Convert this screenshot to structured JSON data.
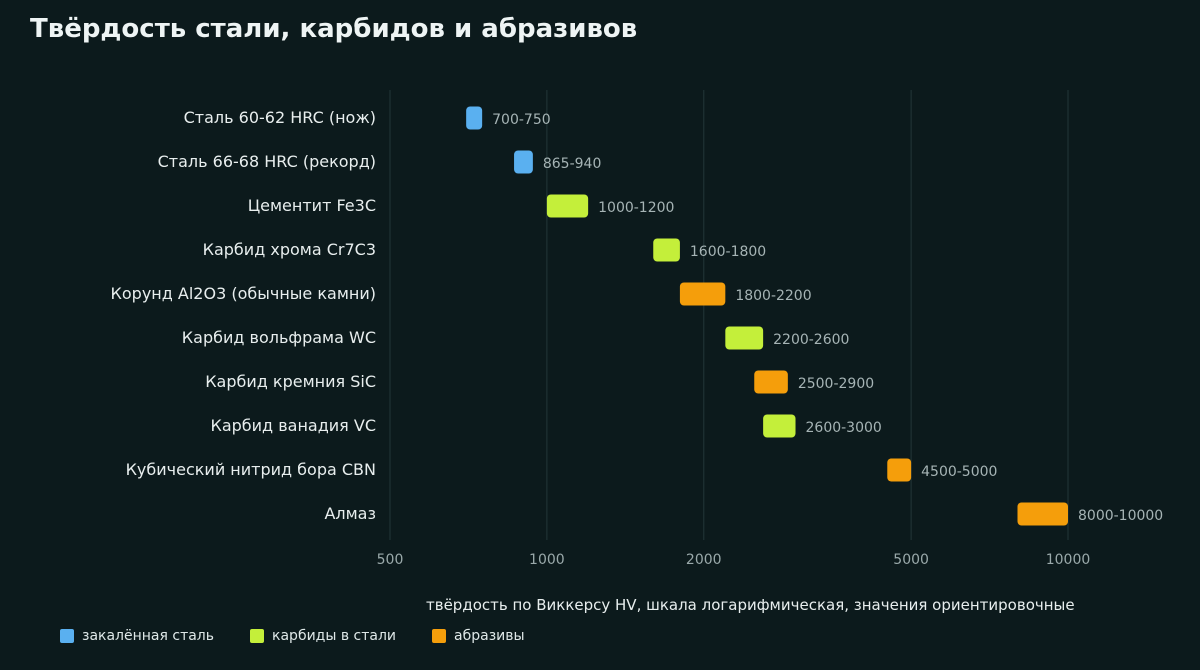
{
  "title": "Твёрдость стали, карбидов и абразивов",
  "chart_data": {
    "type": "bar",
    "subtype": "floating-range-horizontal",
    "title": "Твёрдость стали, карбидов и абразивов",
    "xlabel": "твёрдость по Виккерсу HV, шкала логарифмическая, значения ориентировочные",
    "ylabel": "",
    "x_scale": "log",
    "xlim": [
      500,
      10000
    ],
    "x_ticks": [
      500,
      1000,
      2000,
      5000,
      10000
    ],
    "grid": "vertical",
    "legend_position": "bottom-left",
    "groups": [
      {
        "key": "steel",
        "name": "закалённая сталь",
        "color": "#5ab0f0"
      },
      {
        "key": "carbide",
        "name": "карбиды в стали",
        "color": "#c4ef3a"
      },
      {
        "key": "abrasive",
        "name": "абразивы",
        "color": "#f59e0b"
      }
    ],
    "items": [
      {
        "label": "Сталь 60-62 HRC (нож)",
        "min": 700,
        "max": 750,
        "value_label": "700-750",
        "group": "steel"
      },
      {
        "label": "Сталь 66-68 HRC (рекорд)",
        "min": 865,
        "max": 940,
        "value_label": "865-940",
        "group": "steel"
      },
      {
        "label": "Цементит Fe3C",
        "min": 1000,
        "max": 1200,
        "value_label": "1000-1200",
        "group": "carbide"
      },
      {
        "label": "Карбид хрома Cr7C3",
        "min": 1600,
        "max": 1800,
        "value_label": "1600-1800",
        "group": "carbide"
      },
      {
        "label": "Корунд Al2O3 (обычные камни)",
        "min": 1800,
        "max": 2200,
        "value_label": "1800-2200",
        "group": "abrasive"
      },
      {
        "label": "Карбид вольфрама WC",
        "min": 2200,
        "max": 2600,
        "value_label": "2200-2600",
        "group": "carbide"
      },
      {
        "label": "Карбид кремния SiC",
        "min": 2500,
        "max": 2900,
        "value_label": "2500-2900",
        "group": "abrasive"
      },
      {
        "label": "Карбид ванадия VC",
        "min": 2600,
        "max": 3000,
        "value_label": "2600-3000",
        "group": "carbide"
      },
      {
        "label": "Кубический нитрид бора CBN",
        "min": 4500,
        "max": 5000,
        "value_label": "4500-5000",
        "group": "abrasive"
      },
      {
        "label": "Алмаз",
        "min": 8000,
        "max": 10000,
        "value_label": "8000-10000",
        "group": "abrasive"
      }
    ]
  },
  "colors": {
    "background": "#0c1a1c",
    "grid": "#1f3234",
    "tick_text": "#9aa9aa",
    "value_text": "#a6b4b5",
    "label_text": "#e8eeee"
  }
}
